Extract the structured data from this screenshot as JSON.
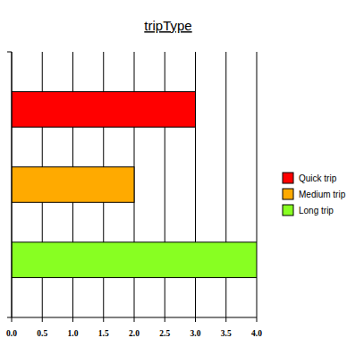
{
  "chart_data": {
    "type": "bar",
    "title": "tripType",
    "orientation": "horizontal",
    "categories": [
      "Quick trip",
      "Medium trip",
      "Long trip"
    ],
    "values": [
      3.0,
      2.0,
      4.0
    ],
    "colors": [
      "#ff0000",
      "#ffaa00",
      "#88ff22"
    ],
    "xlim": [
      0,
      4
    ],
    "xticks": [
      {
        "value": 0,
        "label": "0.0"
      },
      0.5,
      {
        "value": 1,
        "label": "1.0"
      },
      1.5,
      {
        "value": 2,
        "label": "2.0"
      },
      2.5,
      {
        "value": 3,
        "label": "3.0"
      },
      3.5,
      {
        "value": 4,
        "label": "4.0"
      }
    ],
    "grid": true,
    "legend": "right",
    "tick_labels": "x"
  }
}
